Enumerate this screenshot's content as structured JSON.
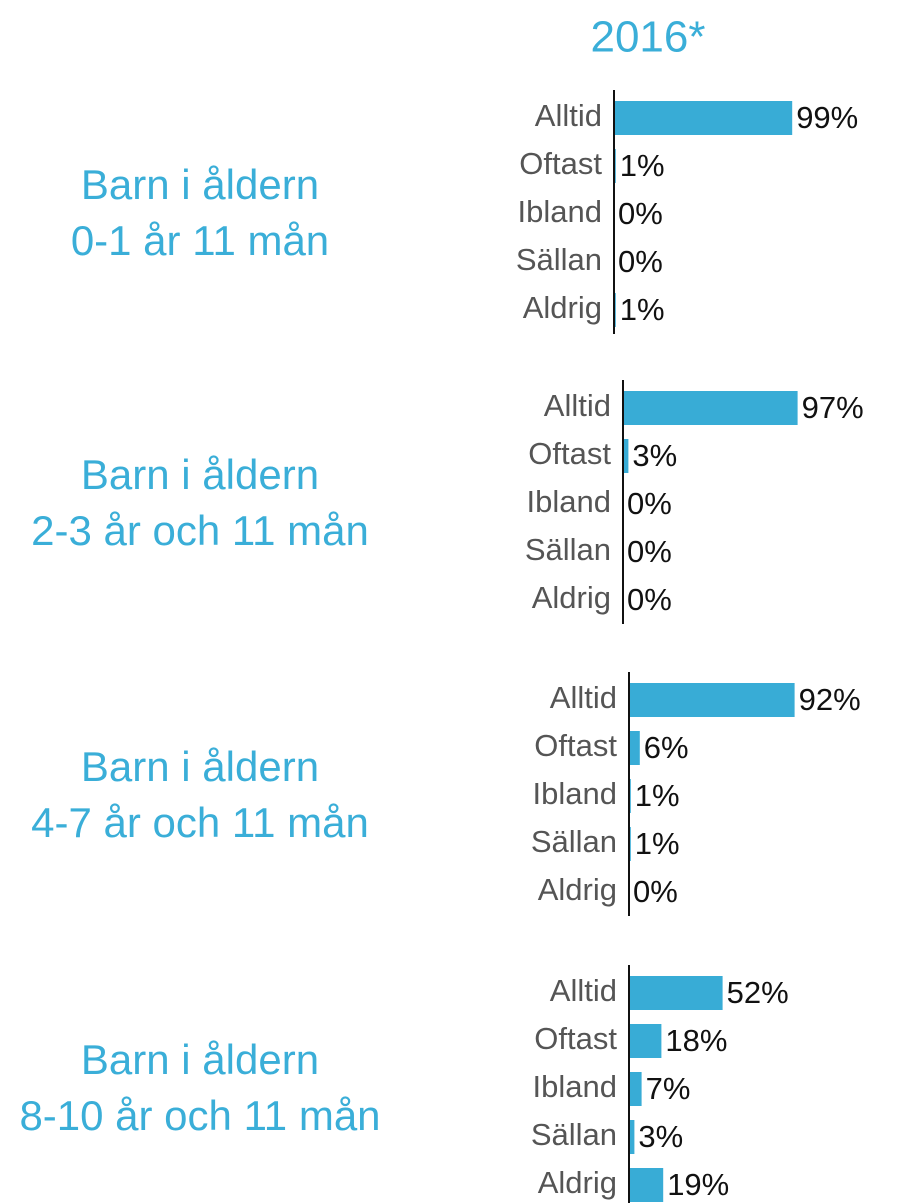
{
  "header": {
    "title": "2016*"
  },
  "chart_data": [
    {
      "type": "bar",
      "title": "Barn i åldern",
      "subtitle": "0-1 år 11 mån",
      "color": "#38acd6",
      "xlim": [
        0,
        100
      ],
      "categories": [
        "Alltid",
        "Oftast",
        "Ibland",
        "Sällan",
        "Aldrig"
      ],
      "values": [
        99,
        1,
        0,
        0,
        1
      ],
      "value_labels": [
        "99%",
        "1%",
        "0%",
        "0%",
        "1%"
      ]
    },
    {
      "type": "bar",
      "title": "Barn i åldern",
      "subtitle": "2-3 år och 11 mån",
      "color": "#38acd6",
      "xlim": [
        0,
        100
      ],
      "categories": [
        "Alltid",
        "Oftast",
        "Ibland",
        "Sällan",
        "Aldrig"
      ],
      "values": [
        97,
        3,
        0,
        0,
        0
      ],
      "value_labels": [
        "97%",
        "3%",
        "0%",
        "0%",
        "0%"
      ]
    },
    {
      "type": "bar",
      "title": "Barn i åldern",
      "subtitle": "4-7 år och 11 mån",
      "color": "#38acd6",
      "xlim": [
        0,
        100
      ],
      "categories": [
        "Alltid",
        "Oftast",
        "Ibland",
        "Sällan",
        "Aldrig"
      ],
      "values": [
        92,
        6,
        1,
        1,
        0
      ],
      "value_labels": [
        "92%",
        "6%",
        "1%",
        "1%",
        "0%"
      ]
    },
    {
      "type": "bar",
      "title": "Barn i åldern",
      "subtitle": "8-10 år och 11 mån",
      "color": "#38acd6",
      "xlim": [
        0,
        100
      ],
      "categories": [
        "Alltid",
        "Oftast",
        "Ibland",
        "Sällan",
        "Aldrig"
      ],
      "values": [
        52,
        18,
        7,
        3,
        19
      ],
      "value_labels": [
        "52%",
        "18%",
        "7%",
        "3%",
        "19%"
      ]
    }
  ]
}
